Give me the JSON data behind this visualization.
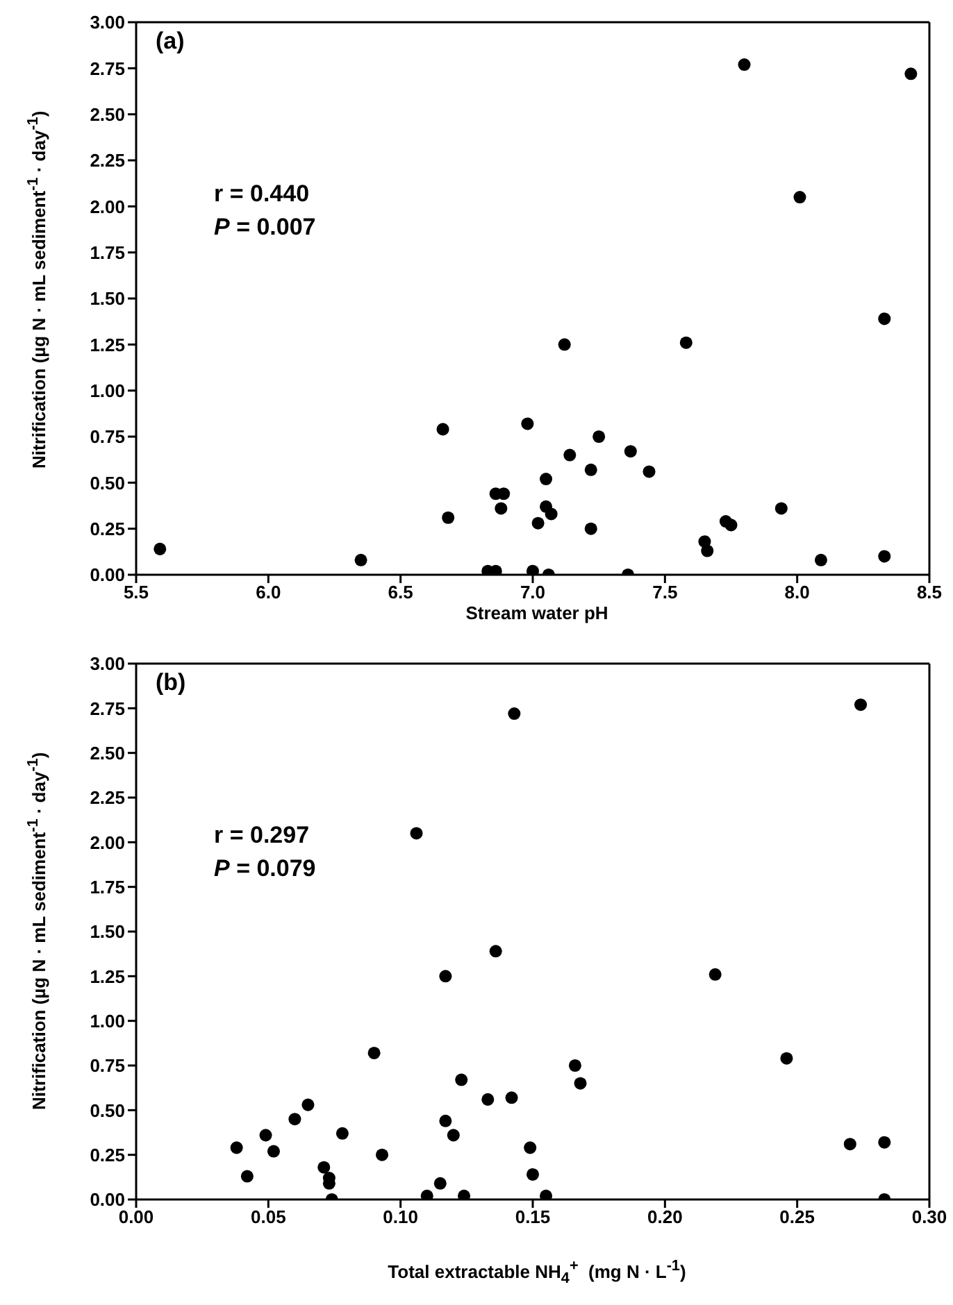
{
  "chart_data": [
    {
      "type": "scatter",
      "xlabel": "Stream water pH",
      "ylabel": "Nitrification (µg N · mL sediment$^{-1}$ · day$^{-1}$)",
      "annotations": [
        "(a)",
        "r = 0.440",
        "P = 0.007"
      ],
      "marker": "circle",
      "xlim": [
        5.5,
        8.5
      ],
      "xticks": [
        5.5,
        {
          "value": 6,
          "label": "6.0"
        },
        6.5,
        {
          "value": 7,
          "label": "7.0"
        },
        7.5,
        {
          "value": 8,
          "label": "8.0"
        },
        8.5
      ],
      "ylim": [
        0,
        3
      ],
      "yticks": [
        {
          "value": 0,
          "label": "0.00"
        },
        0.25,
        {
          "value": 0.5,
          "label": "0.50"
        },
        0.75,
        {
          "value": 1,
          "label": "1.00"
        },
        1.25,
        {
          "value": 1.5,
          "label": "1.50"
        },
        1.75,
        {
          "value": 2,
          "label": "2.00"
        },
        2.25,
        {
          "value": 2.5,
          "label": "2.50"
        },
        2.75,
        {
          "value": 3,
          "label": "3.00"
        }
      ],
      "series": [
        {
          "color": "#000000",
          "x": [
            5.59,
            6.35,
            6.66,
            6.68,
            6.83,
            6.86,
            6.86,
            6.88,
            6.89,
            6.98,
            7.0,
            7.02,
            7.05,
            7.05,
            7.06,
            7.07,
            7.12,
            7.14,
            7.22,
            7.22,
            7.25,
            7.36,
            7.37,
            7.44,
            7.58,
            7.65,
            7.66,
            7.73,
            7.75,
            7.8,
            7.94,
            8.01,
            8.09,
            8.33,
            8.33,
            8.43
          ],
          "values": [
            0.14,
            0.08,
            0.79,
            0.31,
            0.02,
            0.02,
            0.44,
            0.36,
            0.44,
            0.82,
            0.02,
            0.28,
            0.52,
            0.37,
            0.0,
            0.33,
            1.25,
            0.65,
            0.57,
            0.25,
            0.75,
            0.0,
            0.67,
            0.56,
            1.26,
            0.18,
            0.13,
            0.29,
            0.27,
            2.77,
            0.36,
            2.05,
            0.08,
            1.39,
            0.1,
            2.72
          ]
        }
      ]
    },
    {
      "type": "scatter",
      "xlabel": "Total extractable NH$_{4}$$^{+}$  (mg N · L$^{-1}$)",
      "ylabel": "Nitrification (µg N · mL sediment$^{-1}$ · day$^{-1}$)",
      "annotations": [
        "(b)",
        "r = 0.297",
        "P = 0.079"
      ],
      "marker": "circle",
      "xlim": [
        0,
        0.3
      ],
      "xticks": [
        {
          "value": 0,
          "label": "0.00"
        },
        0.05,
        {
          "value": 0.1,
          "label": "0.10"
        },
        0.15,
        {
          "value": 0.2,
          "label": "0.20"
        },
        0.25,
        {
          "value": 0.3,
          "label": "0.30"
        }
      ],
      "ylim": [
        0,
        3
      ],
      "yticks": [
        {
          "value": 0,
          "label": "0.00"
        },
        0.25,
        {
          "value": 0.5,
          "label": "0.50"
        },
        0.75,
        {
          "value": 1,
          "label": "1.00"
        },
        1.25,
        {
          "value": 1.5,
          "label": "1.50"
        },
        1.75,
        {
          "value": 2,
          "label": "2.00"
        },
        2.25,
        {
          "value": 2.5,
          "label": "2.50"
        },
        2.75,
        {
          "value": 3,
          "label": "3.00"
        }
      ],
      "series": [
        {
          "color": "#000000",
          "x": [
            0.038,
            0.042,
            0.049,
            0.052,
            0.06,
            0.065,
            0.071,
            0.073,
            0.073,
            0.074,
            0.078,
            0.09,
            0.093,
            0.106,
            0.11,
            0.115,
            0.117,
            0.117,
            0.12,
            0.123,
            0.124,
            0.133,
            0.136,
            0.142,
            0.143,
            0.149,
            0.15,
            0.155,
            0.166,
            0.168,
            0.219,
            0.246,
            0.27,
            0.274,
            0.283,
            0.283
          ],
          "values": [
            0.29,
            0.13,
            0.36,
            0.27,
            0.45,
            0.53,
            0.18,
            0.12,
            0.09,
            0.0,
            0.37,
            0.82,
            0.25,
            2.05,
            0.02,
            0.09,
            0.44,
            1.25,
            0.36,
            0.67,
            0.02,
            0.56,
            1.39,
            0.57,
            2.72,
            0.29,
            0.14,
            0.02,
            0.75,
            0.65,
            1.26,
            0.79,
            0.31,
            2.77,
            0.0,
            0.32
          ]
        }
      ]
    }
  ]
}
